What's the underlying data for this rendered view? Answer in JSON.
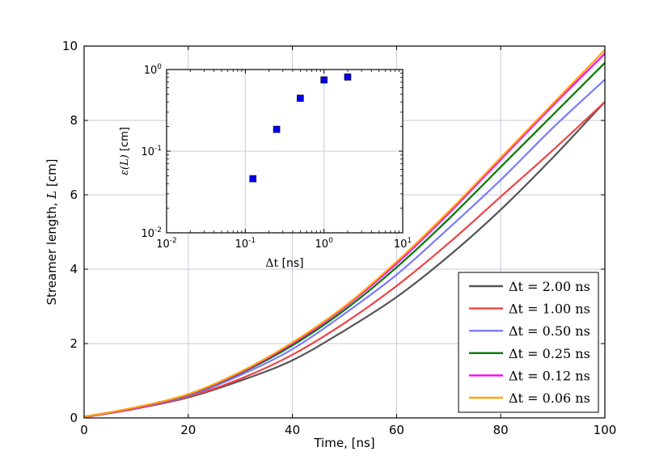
{
  "chart_data": [
    {
      "type": "line",
      "id": "main",
      "title": "",
      "xlabel": "Time, [ns]",
      "ylabel_prefix": "Streamer length, ",
      "ylabel_symbol": "L",
      "ylabel_suffix": " [cm]",
      "xlim": [
        0,
        100
      ],
      "ylim": [
        0,
        10
      ],
      "xticks": [
        0,
        20,
        40,
        60,
        80,
        100
      ],
      "yticks": [
        0,
        2,
        4,
        6,
        8,
        10
      ],
      "grid": true,
      "legend_position": "lower-right",
      "series": [
        {
          "name": "Δt = 2.00 ns",
          "label_sym": "Δt",
          "label_eq": " = ",
          "label_val": "2.00",
          "label_unit": " ns",
          "color": "#555555",
          "x": [
            0,
            10,
            20,
            30,
            40,
            50,
            60,
            70,
            80,
            90,
            100
          ],
          "y": [
            0.02,
            0.25,
            0.55,
            1.0,
            1.55,
            2.35,
            3.25,
            4.35,
            5.6,
            7.0,
            8.5
          ]
        },
        {
          "name": "Δt = 1.00 ns",
          "label_sym": "Δt",
          "label_eq": " = ",
          "label_val": "1.00",
          "label_unit": " ns",
          "color": "#ee4444",
          "x": [
            0,
            10,
            20,
            30,
            40,
            50,
            60,
            70,
            80,
            90,
            100
          ],
          "y": [
            0.02,
            0.25,
            0.57,
            1.05,
            1.7,
            2.55,
            3.55,
            4.7,
            5.95,
            7.2,
            8.5
          ]
        },
        {
          "name": "Δt = 0.50 ns",
          "label_sym": "Δt",
          "label_eq": " = ",
          "label_val": "0.50",
          "label_unit": " ns",
          "color": "#7b7bff",
          "x": [
            0,
            10,
            20,
            30,
            40,
            50,
            60,
            70,
            80,
            90,
            100
          ],
          "y": [
            0.03,
            0.27,
            0.6,
            1.15,
            1.85,
            2.8,
            3.85,
            5.1,
            6.4,
            7.8,
            9.1
          ]
        },
        {
          "name": "Δt = 0.25 ns",
          "label_sym": "Δt",
          "label_eq": " = ",
          "label_val": "0.25",
          "label_unit": " ns",
          "color": "#007700",
          "x": [
            0,
            10,
            20,
            30,
            40,
            50,
            60,
            70,
            80,
            90,
            100
          ],
          "y": [
            0.03,
            0.28,
            0.62,
            1.2,
            1.95,
            2.9,
            4.05,
            5.35,
            6.75,
            8.15,
            9.55
          ]
        },
        {
          "name": "Δt = 0.12 ns",
          "label_sym": "Δt",
          "label_eq": " = ",
          "label_val": "0.12",
          "label_unit": " ns",
          "color": "#ff00ff",
          "x": [
            0,
            10,
            20,
            30,
            40,
            50,
            60,
            70,
            80,
            90,
            100
          ],
          "y": [
            0.03,
            0.28,
            0.63,
            1.22,
            2.0,
            2.97,
            4.15,
            5.5,
            6.95,
            8.4,
            9.8
          ]
        },
        {
          "name": "Δt = 0.06 ns",
          "label_sym": "Δt",
          "label_eq": " = ",
          "label_val": "0.06",
          "label_unit": " ns",
          "color": "#ffa500",
          "x": [
            0,
            10,
            20,
            30,
            40,
            50,
            60,
            70,
            80,
            90,
            100
          ],
          "y": [
            0.03,
            0.29,
            0.64,
            1.24,
            2.03,
            3.0,
            4.2,
            5.55,
            7.0,
            8.45,
            9.9
          ]
        }
      ]
    },
    {
      "type": "scatter",
      "id": "inset",
      "xscale": "log",
      "yscale": "log",
      "xlabel_symbol": "Δt",
      "xlabel_suffix": " [ns]",
      "ylabel_symbol": "ε(L)",
      "ylabel_suffix": " [cm]",
      "xlim": [
        0.01,
        10
      ],
      "ylim": [
        0.01,
        1
      ],
      "xticks": [
        {
          "value": 0.01,
          "base": "10",
          "exp": "-2"
        },
        {
          "value": 0.1,
          "base": "10",
          "exp": "-1"
        },
        {
          "value": 1,
          "base": "10",
          "exp": "0"
        },
        {
          "value": 10,
          "base": "10",
          "exp": "1"
        }
      ],
      "yticks": [
        {
          "value": 0.01,
          "base": "10",
          "exp": "-2"
        },
        {
          "value": 0.1,
          "base": "10",
          "exp": "-1"
        },
        {
          "value": 1,
          "base": "10",
          "exp": "0"
        }
      ],
      "marker": "square",
      "marker_color": "#0000ee",
      "x": [
        0.125,
        0.25,
        0.5,
        1.0,
        2.0
      ],
      "y": [
        0.046,
        0.185,
        0.445,
        0.745,
        0.81
      ]
    }
  ]
}
